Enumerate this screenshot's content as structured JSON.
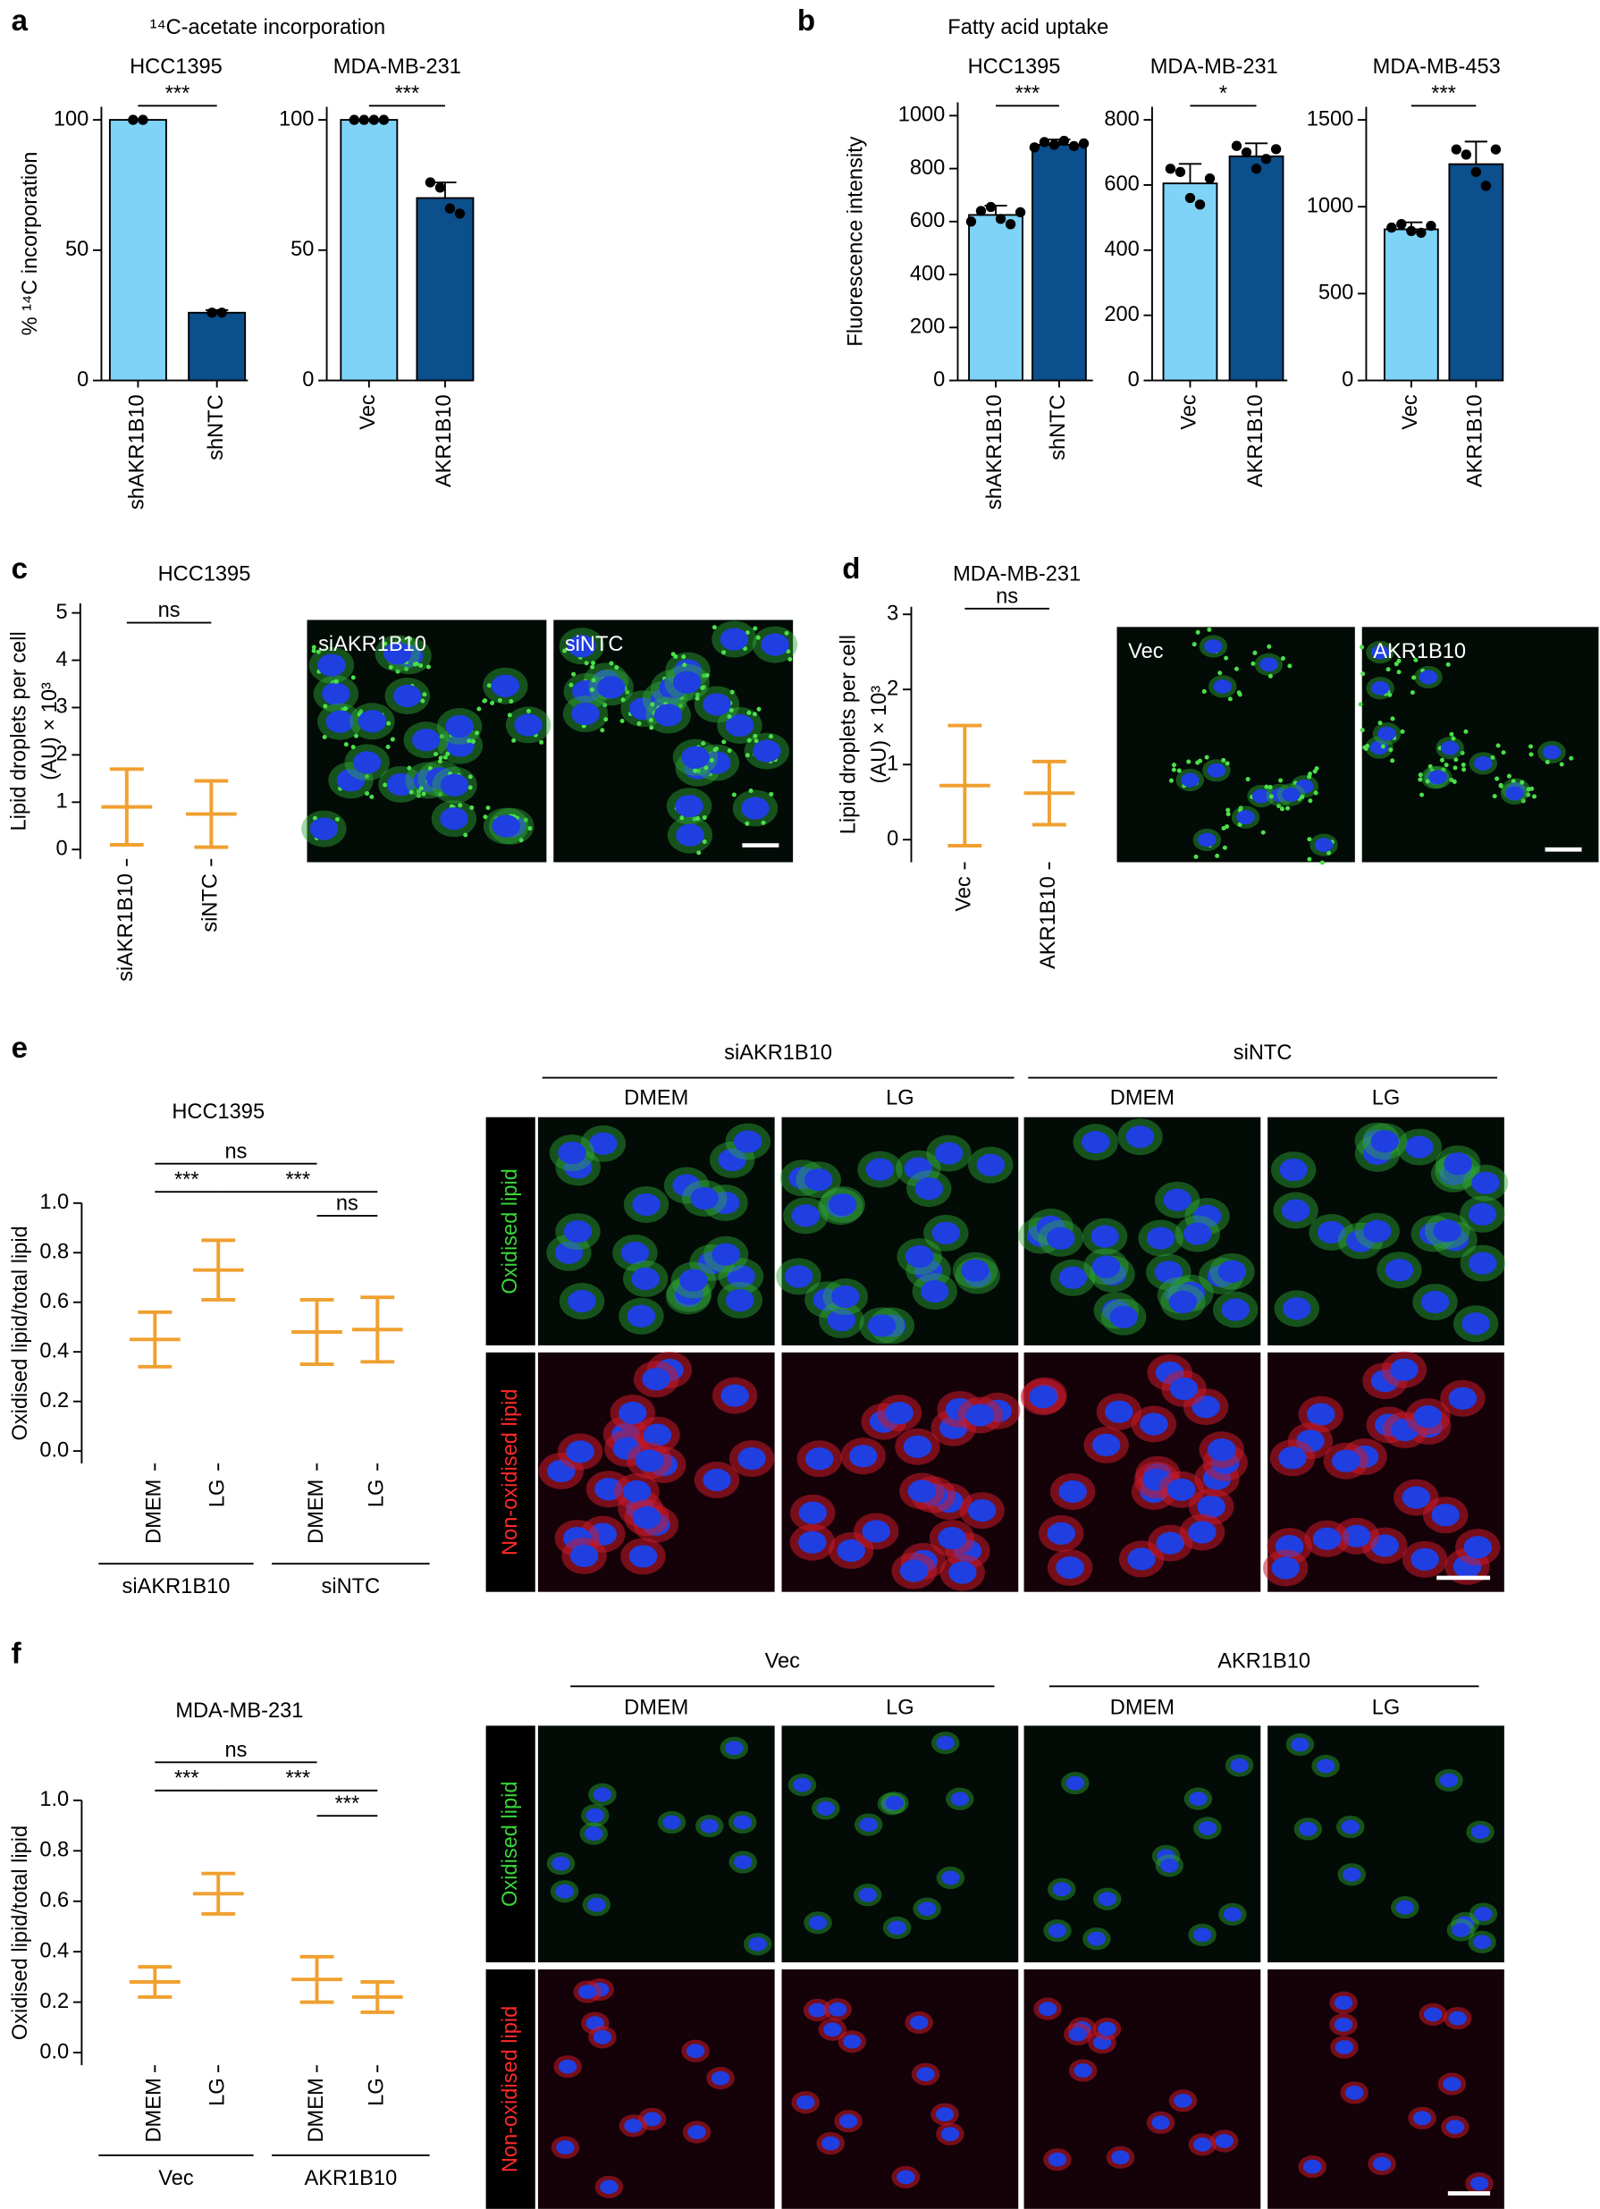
{
  "panel_labels": [
    "a",
    "b",
    "c",
    "d",
    "e",
    "f"
  ],
  "headers": {
    "a": "¹⁴C-acetate incorporation",
    "b": "Fatty acid uptake"
  },
  "chart_data": [
    {
      "type": "bar",
      "title": "HCC1395",
      "ylabel": "% ¹⁴C incorporation",
      "categories": [
        "shAKR1B10",
        "shNTC"
      ],
      "values": [
        100,
        26
      ],
      "errors": [
        0,
        1
      ],
      "points": [
        [
          100,
          100
        ],
        [
          26,
          26
        ]
      ],
      "colors": [
        "#7fd3f7",
        "#0b4f8c"
      ],
      "ylim": [
        0,
        105
      ],
      "yticks": [
        0,
        50,
        100
      ],
      "annotations": [
        "***"
      ]
    },
    {
      "type": "bar",
      "title": "MDA-MB-231",
      "categories": [
        "Vec",
        "AKR1B10"
      ],
      "values": [
        100,
        70
      ],
      "errors": [
        0,
        6
      ],
      "points": [
        [
          100,
          100,
          100,
          100
        ],
        [
          76,
          74,
          66,
          64
        ]
      ],
      "colors": [
        "#7fd3f7",
        "#0b4f8c"
      ],
      "ylim": [
        0,
        105
      ],
      "yticks": [
        0,
        50,
        100
      ],
      "annotations": [
        "***"
      ]
    },
    {
      "type": "bar",
      "title": "HCC1395",
      "ylabel": "Fluorescence intensity",
      "categories": [
        "shAKR1B10",
        "shNTC"
      ],
      "values": [
        625,
        890
      ],
      "errors": [
        35,
        20
      ],
      "points": [
        [
          600,
          640,
          655,
          610,
          590,
          635
        ],
        [
          880,
          900,
          890,
          905,
          885,
          895
        ]
      ],
      "colors": [
        "#7fd3f7",
        "#0b4f8c"
      ],
      "ylim": [
        0,
        1050
      ],
      "yticks": [
        0,
        200,
        400,
        600,
        800,
        1000
      ],
      "annotations": [
        "***"
      ]
    },
    {
      "type": "bar",
      "title": "MDA-MB-231",
      "categories": [
        "Vec",
        "AKR1B10"
      ],
      "values": [
        605,
        688
      ],
      "errors": [
        60,
        40
      ],
      "points": [
        [
          650,
          640,
          560,
          540,
          620
        ],
        [
          720,
          700,
          650,
          680,
          710
        ]
      ],
      "colors": [
        "#7fd3f7",
        "#0b4f8c"
      ],
      "ylim": [
        0,
        840
      ],
      "yticks": [
        0,
        200,
        400,
        600,
        800
      ],
      "annotations": [
        "*"
      ]
    },
    {
      "type": "bar",
      "title": "MDA-MB-453",
      "categories": [
        "Vec",
        "AKR1B10"
      ],
      "values": [
        870,
        1245
      ],
      "errors": [
        40,
        130
      ],
      "points": [
        [
          880,
          900,
          860,
          850,
          890
        ],
        [
          1330,
          1300,
          1200,
          1120,
          1330
        ]
      ],
      "colors": [
        "#7fd3f7",
        "#0b4f8c"
      ],
      "ylim": [
        0,
        1575
      ],
      "yticks": [
        0,
        500,
        1000,
        1500
      ],
      "annotations": [
        "***"
      ]
    },
    {
      "type": "dot",
      "title": "HCC1395",
      "ylabel": [
        "Lipid droplets per cell",
        "(AU) × 10³"
      ],
      "categories": [
        "siAKR1B10",
        "siNTC"
      ],
      "values": [
        0.9,
        0.75
      ],
      "errors": [
        0.8,
        0.7
      ],
      "colors": [
        "#7fd3f7",
        "#0b4f8c"
      ],
      "error_color": "#f0a030",
      "ylim": [
        -0.2,
        5.2
      ],
      "yticks": [
        0,
        1,
        2,
        3,
        4,
        5
      ],
      "annotations": [
        "ns"
      ]
    },
    {
      "type": "dot",
      "title": "MDA-MB-231",
      "ylabel": [
        "Lipid droplets per cell",
        "(AU) × 10³"
      ],
      "categories": [
        "Vec",
        "AKR1B10"
      ],
      "values": [
        0.72,
        0.62
      ],
      "errors": [
        0.8,
        0.42
      ],
      "colors": [
        "#7fd3f7",
        "#0b4f8c"
      ],
      "error_color": "#f0a030",
      "ylim": [
        -0.3,
        3.1
      ],
      "yticks": [
        0,
        1,
        2,
        3
      ],
      "annotations": [
        "ns"
      ]
    },
    {
      "type": "dot",
      "title": "HCC1395",
      "ylabel": "Oxidised lipid/total lipid",
      "categories": [
        "DMEM",
        "LG",
        "DMEM",
        "LG"
      ],
      "values": [
        0.45,
        0.73,
        0.48,
        0.49
      ],
      "errors": [
        0.11,
        0.12,
        0.13,
        0.13
      ],
      "colors": [
        "#7fd3f7",
        "#7fd3f7",
        "#0b4f8c",
        "#0b4f8c"
      ],
      "error_color": "#f0a030",
      "ylim": [
        -0.05,
        1.0
      ],
      "yticks": [
        {
          "value": 0,
          "label": "0.0"
        },
        0.2,
        0.4,
        0.6,
        0.8,
        {
          "value": 1,
          "label": "1.0"
        }
      ],
      "annotations": [
        "ns",
        "***",
        "***",
        "ns"
      ],
      "groups": [
        "siAKR1B10",
        "siNTC"
      ]
    },
    {
      "type": "dot",
      "title": "MDA-MB-231",
      "ylabel": "Oxidised lipid/total lipid",
      "categories": [
        "DMEM",
        "LG",
        "DMEM",
        "LG"
      ],
      "values": [
        0.28,
        0.63,
        0.29,
        0.22
      ],
      "errors": [
        0.06,
        0.08,
        0.09,
        0.06
      ],
      "colors": [
        "#7fd3f7",
        "#7fd3f7",
        "#0b4f8c",
        "#0b4f8c"
      ],
      "error_color": "#f0a030",
      "ylim": [
        -0.05,
        1.0
      ],
      "yticks": [
        {
          "value": 0,
          "label": "0.0"
        },
        0.2,
        0.4,
        0.6,
        0.8,
        {
          "value": 1,
          "label": "1.0"
        }
      ],
      "annotations": [
        "ns",
        "***",
        "***",
        "***"
      ],
      "groups": [
        "Vec",
        "AKR1B10"
      ]
    }
  ],
  "images": {
    "c": [
      "siAKR1B10",
      "siNTC"
    ],
    "d": [
      "Vec",
      "AKR1B10"
    ],
    "e": {
      "groups": [
        "siAKR1B10",
        "siNTC"
      ],
      "columns": [
        "DMEM",
        "LG",
        "DMEM",
        "LG"
      ],
      "rows": [
        "Oxidised lipid",
        "Non-oxidised lipid"
      ]
    },
    "f": {
      "groups": [
        "Vec",
        "AKR1B10"
      ],
      "columns": [
        "DMEM",
        "LG",
        "DMEM",
        "LG"
      ],
      "rows": [
        "Oxidised lipid",
        "Non-oxidised lipid"
      ]
    }
  }
}
